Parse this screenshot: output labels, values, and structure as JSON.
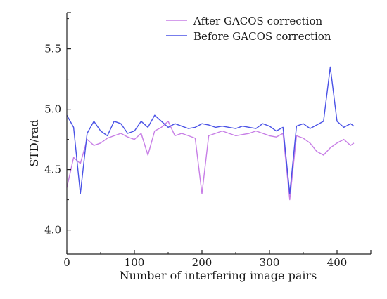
{
  "chart_data": {
    "type": "line",
    "xlabel": "Number of interfering image pairs",
    "ylabel": "STD/rad",
    "xlim": [
      0,
      450
    ],
    "ylim": [
      3.8,
      5.8
    ],
    "x_ticks": [
      "0",
      "100",
      "200",
      "300",
      "400"
    ],
    "y_ticks": [
      "4.0",
      "4.5",
      "5.0",
      "5.5"
    ],
    "grid": false,
    "legend_position": "top-right",
    "x": [
      0,
      10,
      20,
      30,
      40,
      50,
      60,
      70,
      80,
      90,
      100,
      110,
      120,
      130,
      140,
      150,
      160,
      170,
      180,
      190,
      200,
      210,
      220,
      230,
      240,
      250,
      260,
      270,
      280,
      290,
      300,
      310,
      320,
      330,
      340,
      350,
      360,
      370,
      380,
      390,
      400,
      410,
      420,
      425
    ],
    "series": [
      {
        "name": "After GACOS correction",
        "color": "#c77ee6",
        "values": [
          4.35,
          4.6,
          4.55,
          4.75,
          4.7,
          4.72,
          4.76,
          4.78,
          4.8,
          4.77,
          4.75,
          4.8,
          4.62,
          4.82,
          4.85,
          4.9,
          4.78,
          4.8,
          4.78,
          4.76,
          4.3,
          4.78,
          4.8,
          4.82,
          4.8,
          4.78,
          4.79,
          4.8,
          4.82,
          4.8,
          4.78,
          4.77,
          4.8,
          4.25,
          4.78,
          4.76,
          4.72,
          4.65,
          4.62,
          4.68,
          4.72,
          4.75,
          4.7,
          4.72
        ]
      },
      {
        "name": "Before GACOS correction",
        "color": "#4a52e6",
        "values": [
          4.95,
          4.85,
          4.3,
          4.8,
          4.9,
          4.82,
          4.78,
          4.9,
          4.88,
          4.8,
          4.82,
          4.9,
          4.85,
          4.95,
          4.9,
          4.85,
          4.88,
          4.86,
          4.84,
          4.85,
          4.88,
          4.87,
          4.85,
          4.86,
          4.85,
          4.84,
          4.86,
          4.85,
          4.84,
          4.88,
          4.86,
          4.82,
          4.85,
          4.3,
          4.86,
          4.88,
          4.84,
          4.87,
          4.9,
          5.35,
          4.9,
          4.85,
          4.88,
          4.86
        ]
      }
    ]
  }
}
